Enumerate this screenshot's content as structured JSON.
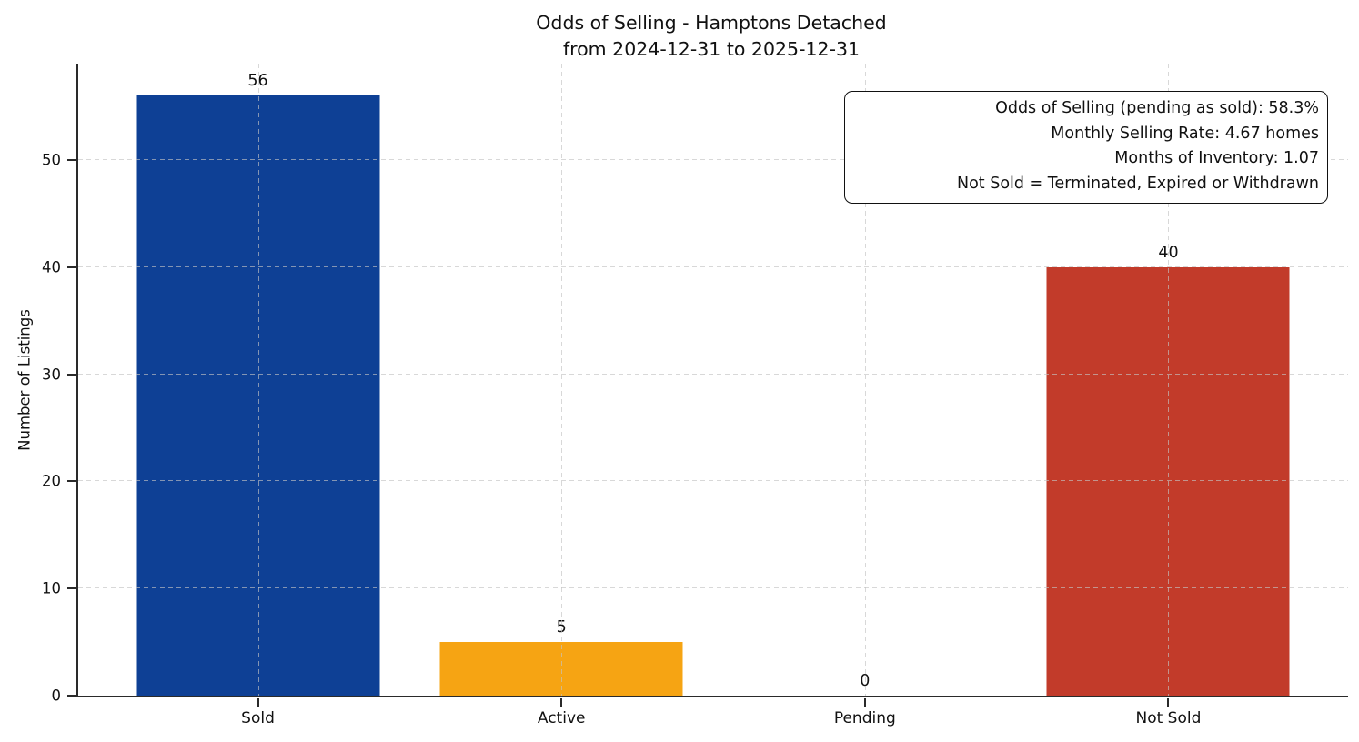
{
  "title": {
    "line1": "Odds of Selling - Hamptons Detached",
    "line2": "from 2024-12-31 to 2025-12-31"
  },
  "chart_data": {
    "type": "bar",
    "title": "Odds of Selling - Hamptons Detached",
    "subtitle": "from 2024-12-31 to 2025-12-31",
    "categories": [
      "Sold",
      "Active",
      "Pending",
      "Not Sold"
    ],
    "values": [
      56,
      5,
      0,
      40
    ],
    "value_labels": [
      "56",
      "5",
      "0",
      "40"
    ],
    "bar_colors": [
      "#0e4095",
      "#f6a413",
      null,
      "#c23b2a"
    ],
    "xlabel": "",
    "ylabel": "Number of Listings",
    "yticks": [
      "0",
      "10",
      "20",
      "30",
      "40",
      "50"
    ],
    "ylim": [
      0,
      59
    ],
    "grid": {
      "visible": true,
      "style": "dashed",
      "axes": "both",
      "color": "#d8d8d8"
    },
    "axis_color": "#2a2a2a",
    "legend": "none",
    "annotations": [
      "Odds of Selling (pending as sold): 58.3%",
      "Monthly Selling Rate: 4.67 homes",
      "Months of Inventory: 1.07",
      "Not Sold = Terminated, Expired or Withdrawn"
    ]
  }
}
